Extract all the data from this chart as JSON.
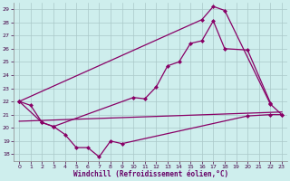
{
  "xlabel": "Windchill (Refroidissement éolien,°C)",
  "bg_color": "#ceeeed",
  "grid_color": "#aac8c8",
  "line_color": "#880066",
  "xlim": [
    -0.5,
    23.5
  ],
  "ylim": [
    17.5,
    29.5
  ],
  "yticks": [
    18,
    19,
    20,
    21,
    22,
    23,
    24,
    25,
    26,
    27,
    28,
    29
  ],
  "xticks": [
    0,
    1,
    2,
    3,
    4,
    5,
    6,
    7,
    8,
    9,
    10,
    11,
    12,
    13,
    14,
    15,
    16,
    17,
    18,
    19,
    20,
    21,
    22,
    23
  ],
  "line1_x": [
    0,
    1,
    2,
    3,
    4,
    5,
    6,
    7,
    8,
    9,
    20,
    22,
    23
  ],
  "line1_y": [
    22.0,
    21.7,
    20.4,
    20.1,
    19.5,
    18.5,
    18.5,
    17.8,
    19.0,
    18.8,
    20.9,
    21.0,
    21.0
  ],
  "line2_x": [
    0,
    2,
    3,
    10,
    11,
    12,
    13,
    14,
    15,
    16,
    17,
    18,
    20,
    22
  ],
  "line2_y": [
    22.0,
    20.4,
    20.1,
    22.3,
    22.2,
    23.1,
    24.7,
    25.0,
    26.4,
    26.6,
    28.1,
    26.0,
    25.9,
    21.9
  ],
  "line3_x": [
    0,
    16,
    17,
    18,
    22,
    23
  ],
  "line3_y": [
    22.0,
    28.2,
    29.2,
    28.9,
    21.8,
    21.0
  ],
  "line4_x": [
    0,
    23
  ],
  "line4_y": [
    20.5,
    21.2
  ]
}
